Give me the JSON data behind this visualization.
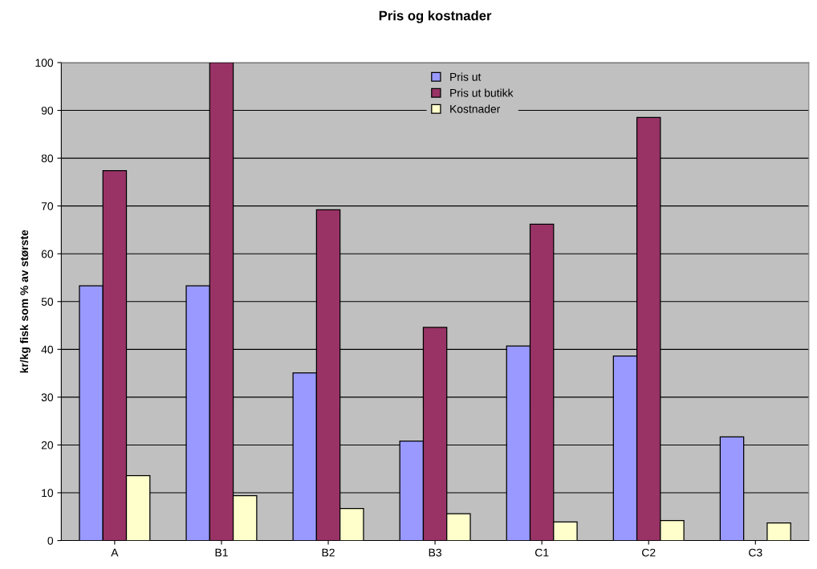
{
  "chart_data": {
    "type": "bar",
    "title": "Pris og kostnader",
    "ylabel": "kr/kg fisk som % av største",
    "categories": [
      "A",
      "B1",
      "B2",
      "B3",
      "C1",
      "C2",
      "C3"
    ],
    "series": [
      {
        "name": "Pris ut",
        "color": "#9999ff",
        "values": [
          53.3,
          53.3,
          35.1,
          20.8,
          40.7,
          38.6,
          21.7
        ]
      },
      {
        "name": "Pris ut butikk",
        "color": "#993366",
        "values": [
          77.4,
          100,
          69.2,
          44.6,
          66.2,
          88.5,
          null
        ]
      },
      {
        "name": "Kostnader",
        "color": "#ffffcc",
        "values": [
          13.6,
          9.4,
          6.7,
          5.6,
          3.9,
          4.2,
          3.7
        ]
      }
    ],
    "ylim": [
      0,
      100
    ],
    "yticks": [
      0,
      10,
      20,
      30,
      40,
      50,
      60,
      70,
      80,
      90,
      100
    ],
    "grid": "y",
    "legend": "top"
  }
}
